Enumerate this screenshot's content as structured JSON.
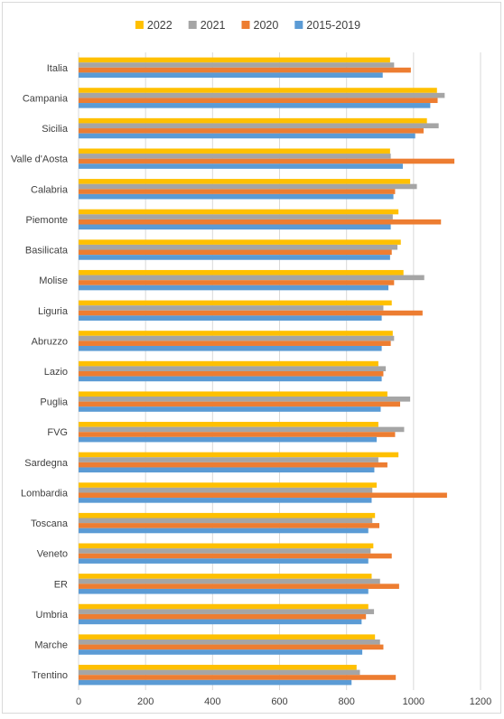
{
  "chart_data": {
    "type": "bar",
    "orientation": "horizontal",
    "categories": [
      "Italia",
      "Campania",
      "Sicilia",
      "Valle d'Aosta",
      "Calabria",
      "Piemonte",
      "Basilicata",
      "Molise",
      "Liguria",
      "Abruzzo",
      "Lazio",
      "Puglia",
      "FVG",
      "Sardegna",
      "Lombardia",
      "Toscana",
      "Veneto",
      "ER",
      "Umbria",
      "Marche",
      "Trentino"
    ],
    "series": [
      {
        "name": "2022",
        "color": "#FFC000",
        "values": [
          930,
          1070,
          1040,
          930,
          990,
          955,
          962,
          970,
          935,
          938,
          895,
          922,
          895,
          955,
          890,
          885,
          880,
          875,
          865,
          885,
          830
        ]
      },
      {
        "name": "2021",
        "color": "#A5A5A5",
        "values": [
          942,
          1093,
          1075,
          932,
          1010,
          938,
          952,
          1032,
          910,
          942,
          917,
          990,
          972,
          895,
          877,
          877,
          872,
          900,
          882,
          900,
          840
        ]
      },
      {
        "name": "2020",
        "color": "#ED7D31",
        "values": [
          992,
          1072,
          1030,
          1122,
          945,
          1082,
          935,
          942,
          1027,
          932,
          910,
          960,
          945,
          922,
          1100,
          898,
          935,
          957,
          858,
          910,
          947
        ]
      },
      {
        "name": "2015-2019",
        "color": "#5B9BD5",
        "values": [
          908,
          1050,
          1005,
          968,
          940,
          932,
          930,
          925,
          905,
          905,
          905,
          902,
          890,
          883,
          875,
          865,
          865,
          865,
          845,
          847,
          815
        ]
      }
    ],
    "xlim": [
      0,
      1200
    ],
    "xticks": [
      "0",
      "200",
      "400",
      "600",
      "800",
      "1000",
      "1200"
    ],
    "grid": true,
    "legend_position": "top"
  }
}
